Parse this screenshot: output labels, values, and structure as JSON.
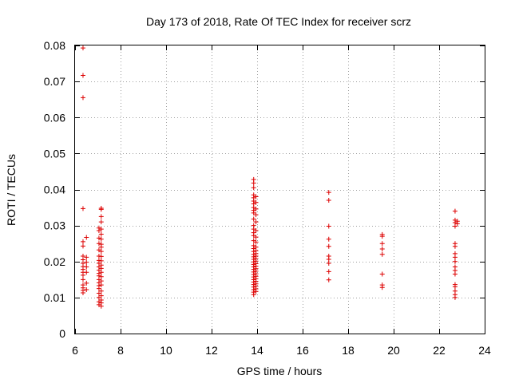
{
  "chart_data": {
    "type": "scatter",
    "title": "Day 173 of 2018, Rate Of TEC Index for receiver scrz",
    "xlabel": "GPS time / hours",
    "ylabel": "ROTI / TECUs",
    "xlim": [
      6,
      24
    ],
    "ylim": [
      0,
      0.08
    ],
    "x_ticks": [
      6,
      8,
      10,
      12,
      14,
      16,
      18,
      20,
      22,
      24
    ],
    "x_tick_labels": [
      "6",
      "8",
      "10",
      "12",
      "14",
      "16",
      "18",
      "20",
      "22",
      "24"
    ],
    "y_ticks": [
      0,
      0.01,
      0.02,
      0.03,
      0.04,
      0.05,
      0.06,
      0.07,
      0.08
    ],
    "y_tick_labels": [
      "0",
      "0.01",
      "0.02",
      "0.03",
      "0.04",
      "0.05",
      "0.06",
      "0.07",
      "0.08"
    ],
    "grid": true,
    "marker": "+",
    "color": "#dd0000",
    "series": [
      {
        "name": "ROTI",
        "points": [
          [
            6.35,
            0.0793
          ],
          [
            6.35,
            0.0717
          ],
          [
            6.35,
            0.0655
          ],
          [
            6.35,
            0.0347
          ],
          [
            6.35,
            0.0255
          ],
          [
            6.35,
            0.0243
          ],
          [
            6.35,
            0.0215
          ],
          [
            6.35,
            0.0205
          ],
          [
            6.35,
            0.0195
          ],
          [
            6.35,
            0.0186
          ],
          [
            6.35,
            0.0178
          ],
          [
            6.35,
            0.017
          ],
          [
            6.35,
            0.0162
          ],
          [
            6.35,
            0.015
          ],
          [
            6.35,
            0.0135
          ],
          [
            6.35,
            0.0127
          ],
          [
            6.35,
            0.012
          ],
          [
            6.35,
            0.0113
          ],
          [
            6.5,
            0.0267
          ],
          [
            6.5,
            0.0212
          ],
          [
            6.5,
            0.0198
          ],
          [
            6.5,
            0.0185
          ],
          [
            6.5,
            0.017
          ],
          [
            6.5,
            0.014
          ],
          [
            6.5,
            0.0122
          ],
          [
            7.05,
            0.0293
          ],
          [
            7.05,
            0.0286
          ],
          [
            7.05,
            0.0265
          ],
          [
            7.05,
            0.025
          ],
          [
            7.05,
            0.0232
          ],
          [
            7.05,
            0.0215
          ],
          [
            7.05,
            0.0203
          ],
          [
            7.05,
            0.0195
          ],
          [
            7.05,
            0.0185
          ],
          [
            7.05,
            0.0176
          ],
          [
            7.05,
            0.0167
          ],
          [
            7.05,
            0.016
          ],
          [
            7.05,
            0.015
          ],
          [
            7.05,
            0.0141
          ],
          [
            7.05,
            0.0133
          ],
          [
            7.05,
            0.0125
          ],
          [
            7.05,
            0.0112
          ],
          [
            7.05,
            0.01
          ],
          [
            7.05,
            0.0088
          ],
          [
            7.05,
            0.008
          ],
          [
            7.15,
            0.0348
          ],
          [
            7.15,
            0.0345
          ],
          [
            7.15,
            0.0325
          ],
          [
            7.15,
            0.031
          ],
          [
            7.15,
            0.029
          ],
          [
            7.15,
            0.0276
          ],
          [
            7.15,
            0.0262
          ],
          [
            7.15,
            0.0248
          ],
          [
            7.15,
            0.024
          ],
          [
            7.15,
            0.0228
          ],
          [
            7.15,
            0.0214
          ],
          [
            7.15,
            0.0202
          ],
          [
            7.15,
            0.019
          ],
          [
            7.15,
            0.0181
          ],
          [
            7.15,
            0.017
          ],
          [
            7.15,
            0.0158
          ],
          [
            7.15,
            0.0146
          ],
          [
            7.15,
            0.0135
          ],
          [
            7.15,
            0.0118
          ],
          [
            7.15,
            0.0105
          ],
          [
            7.15,
            0.0093
          ],
          [
            7.15,
            0.0085
          ],
          [
            7.15,
            0.0076
          ],
          [
            13.85,
            0.0428
          ],
          [
            13.85,
            0.0418
          ],
          [
            13.85,
            0.0405
          ],
          [
            13.85,
            0.0385
          ],
          [
            13.85,
            0.0377
          ],
          [
            13.85,
            0.0368
          ],
          [
            13.85,
            0.036
          ],
          [
            13.85,
            0.035
          ],
          [
            13.85,
            0.0342
          ],
          [
            13.85,
            0.0335
          ],
          [
            13.85,
            0.0318
          ],
          [
            13.85,
            0.03
          ],
          [
            13.85,
            0.029
          ],
          [
            13.85,
            0.028
          ],
          [
            13.85,
            0.0272
          ],
          [
            13.85,
            0.0258
          ],
          [
            13.85,
            0.0244
          ],
          [
            13.85,
            0.0236
          ],
          [
            13.85,
            0.0228
          ],
          [
            13.85,
            0.022
          ],
          [
            13.85,
            0.0213
          ],
          [
            13.85,
            0.0206
          ],
          [
            13.85,
            0.0199
          ],
          [
            13.85,
            0.0192
          ],
          [
            13.85,
            0.0185
          ],
          [
            13.85,
            0.0178
          ],
          [
            13.85,
            0.0171
          ],
          [
            13.85,
            0.0164
          ],
          [
            13.85,
            0.0157
          ],
          [
            13.85,
            0.015
          ],
          [
            13.85,
            0.0143
          ],
          [
            13.85,
            0.0136
          ],
          [
            13.85,
            0.0129
          ],
          [
            13.85,
            0.0122
          ],
          [
            13.85,
            0.0115
          ],
          [
            13.85,
            0.0108
          ],
          [
            13.95,
            0.038
          ],
          [
            13.95,
            0.0364
          ],
          [
            13.95,
            0.0346
          ],
          [
            13.95,
            0.033
          ],
          [
            13.95,
            0.031
          ],
          [
            13.95,
            0.0286
          ],
          [
            13.95,
            0.0268
          ],
          [
            13.95,
            0.0254
          ],
          [
            13.95,
            0.024
          ],
          [
            13.95,
            0.023
          ],
          [
            13.95,
            0.0222
          ],
          [
            13.95,
            0.0215
          ],
          [
            13.95,
            0.0208
          ],
          [
            13.95,
            0.0201
          ],
          [
            13.95,
            0.0194
          ],
          [
            13.95,
            0.0187
          ],
          [
            13.95,
            0.018
          ],
          [
            13.95,
            0.0173
          ],
          [
            13.95,
            0.0166
          ],
          [
            13.95,
            0.0159
          ],
          [
            13.95,
            0.0152
          ],
          [
            13.95,
            0.0145
          ],
          [
            13.95,
            0.0138
          ],
          [
            13.95,
            0.0131
          ],
          [
            13.95,
            0.0124
          ],
          [
            13.95,
            0.0117
          ],
          [
            17.15,
            0.0392
          ],
          [
            17.15,
            0.037
          ],
          [
            17.15,
            0.0298
          ],
          [
            17.15,
            0.0262
          ],
          [
            17.15,
            0.0242
          ],
          [
            17.15,
            0.0215
          ],
          [
            17.15,
            0.0206
          ],
          [
            17.15,
            0.0195
          ],
          [
            17.15,
            0.0172
          ],
          [
            17.15,
            0.0149
          ],
          [
            19.5,
            0.0275
          ],
          [
            19.5,
            0.027
          ],
          [
            19.5,
            0.025
          ],
          [
            19.5,
            0.0235
          ],
          [
            19.5,
            0.022
          ],
          [
            19.5,
            0.0165
          ],
          [
            19.5,
            0.0135
          ],
          [
            19.5,
            0.0128
          ],
          [
            22.7,
            0.034
          ],
          [
            22.7,
            0.0315
          ],
          [
            22.7,
            0.0308
          ],
          [
            22.7,
            0.0298
          ],
          [
            22.7,
            0.025
          ],
          [
            22.7,
            0.0242
          ],
          [
            22.7,
            0.0222
          ],
          [
            22.7,
            0.0212
          ],
          [
            22.7,
            0.02
          ],
          [
            22.7,
            0.0185
          ],
          [
            22.7,
            0.0175
          ],
          [
            22.7,
            0.0165
          ],
          [
            22.7,
            0.0136
          ],
          [
            22.7,
            0.013
          ],
          [
            22.7,
            0.0118
          ],
          [
            22.7,
            0.0108
          ],
          [
            22.7,
            0.01
          ],
          [
            22.8,
            0.0312
          ],
          [
            22.8,
            0.0305
          ]
        ]
      }
    ]
  }
}
